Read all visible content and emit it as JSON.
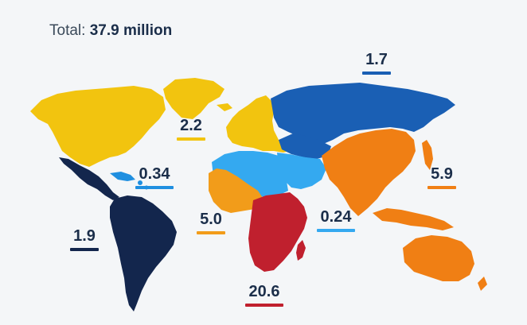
{
  "header": {
    "total_label": "Total:",
    "total_value": "37.9 million"
  },
  "regions": [
    {
      "key": "northern-america",
      "value": "1.7",
      "color": "#1a5fb4"
    },
    {
      "key": "north-america",
      "value": "2.2",
      "color": "#f2c40f"
    },
    {
      "key": "caribbean",
      "value": "0.34",
      "color": "#1f8fe0"
    },
    {
      "key": "asia",
      "value": "5.9",
      "color": "#f07f14"
    },
    {
      "key": "latin-america",
      "value": "1.9",
      "color": "#13264d"
    },
    {
      "key": "western-africa",
      "value": "5.0",
      "color": "#f29c1a"
    },
    {
      "key": "northern-africa-middle-east",
      "value": "0.24",
      "color": "#34a9f0"
    },
    {
      "key": "east-southern-africa",
      "value": "20.6",
      "color": "#c0202e"
    }
  ]
}
